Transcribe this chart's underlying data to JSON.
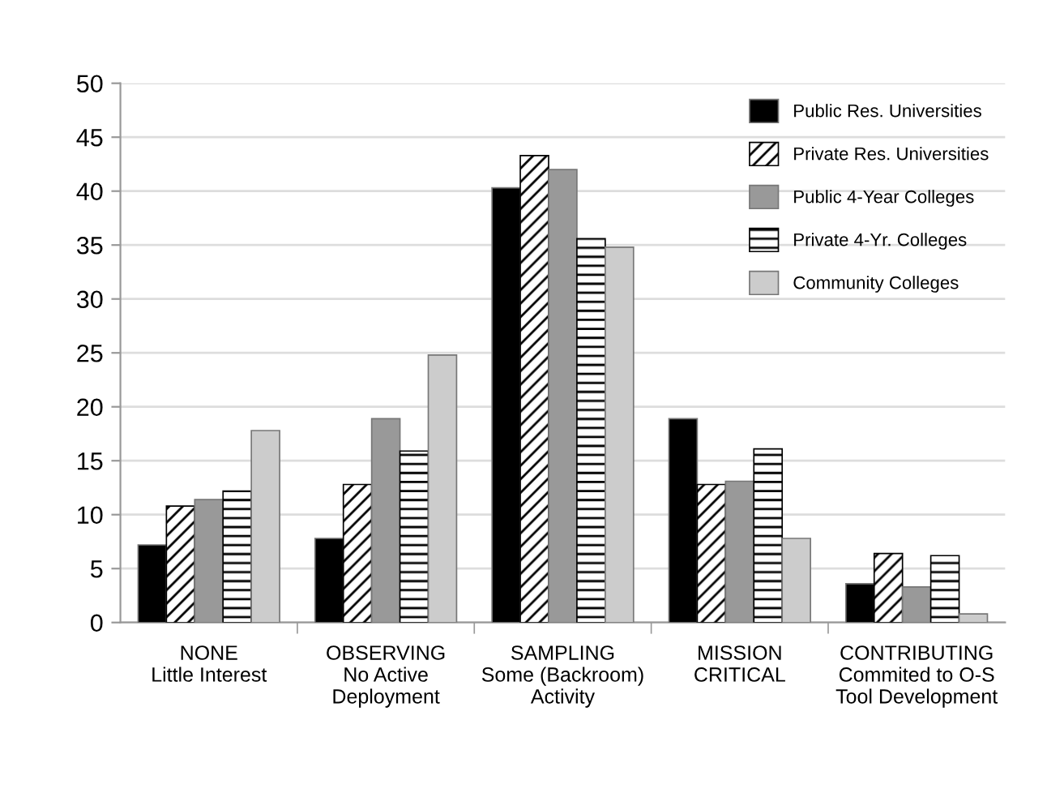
{
  "chart_data": {
    "type": "bar",
    "categories": [
      "NONE\nLittle Interest",
      "OBSERVING\nNo Active\nDeployment",
      "SAMPLING\nSome (Backroom)\nActivity",
      "MISSION\nCRITICAL",
      "CONTRIBUTING\nCommited to O-S\nTool Development"
    ],
    "series": [
      {
        "name": "Public Res. Universities",
        "color": "#000000",
        "values": [
          7.2,
          7.8,
          40.3,
          18.9,
          3.6
        ]
      },
      {
        "name": "Private Res. Universities",
        "color": "#000000",
        "values": [
          10.8,
          12.8,
          43.3,
          12.8,
          6.4
        ]
      },
      {
        "name": "Public 4-Year Colleges",
        "color": "#999999",
        "values": [
          11.4,
          18.9,
          42.0,
          13.1,
          3.3
        ]
      },
      {
        "name": "Private 4-Yr. Colleges",
        "color": "#000000",
        "values": [
          12.2,
          15.9,
          35.6,
          16.1,
          6.2
        ]
      },
      {
        "name": "Community Colleges",
        "color": "#cccccc",
        "values": [
          17.8,
          24.8,
          34.8,
          7.8,
          0.8
        ]
      }
    ],
    "ylim": [
      0,
      50
    ],
    "yticks": [
      0,
      5,
      10,
      15,
      20,
      25,
      30,
      35,
      40,
      45,
      50
    ],
    "grid": "y",
    "legend": "top right"
  }
}
